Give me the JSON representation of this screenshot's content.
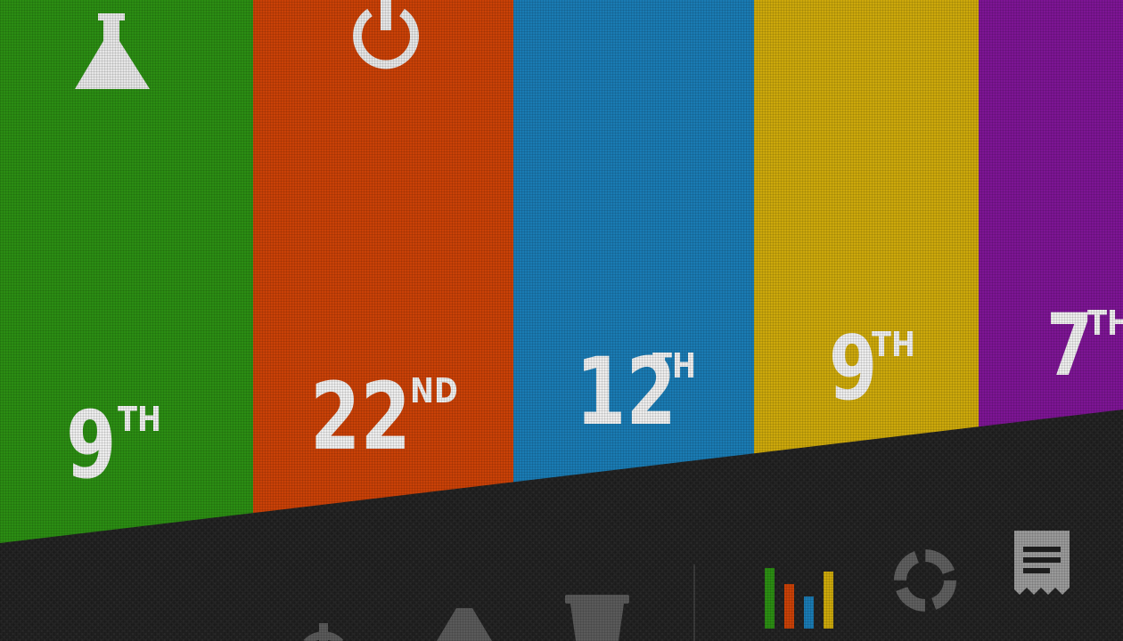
{
  "columns": [
    {
      "id": "green",
      "icon": "flask-icon",
      "rank_number": "9",
      "rank_suffix": "TH",
      "color": "#2b8d13"
    },
    {
      "id": "orange",
      "icon": "power-icon",
      "rank_number": "22",
      "rank_suffix": "ND",
      "color": "#c94107"
    },
    {
      "id": "blue",
      "icon": "",
      "rank_number": "12",
      "rank_suffix": "TH",
      "color": "#1a7bb3"
    },
    {
      "id": "yellow",
      "icon": "",
      "rank_number": "9",
      "rank_suffix": "TH",
      "color": "#cca80b"
    },
    {
      "id": "purple",
      "icon": "",
      "rank_number": "7",
      "rank_suffix": "TH",
      "color": "#7d1594"
    }
  ],
  "bottom_nav": {
    "left_icons": [
      "power-icon",
      "flask-icon",
      "cup-icon"
    ],
    "right_icons": [
      "bar-chart-icon",
      "donut-chart-icon",
      "receipt-icon"
    ],
    "bar_chart_colors": [
      "#2b8d13",
      "#c94107",
      "#1a7bb3",
      "#cca80b"
    ]
  }
}
